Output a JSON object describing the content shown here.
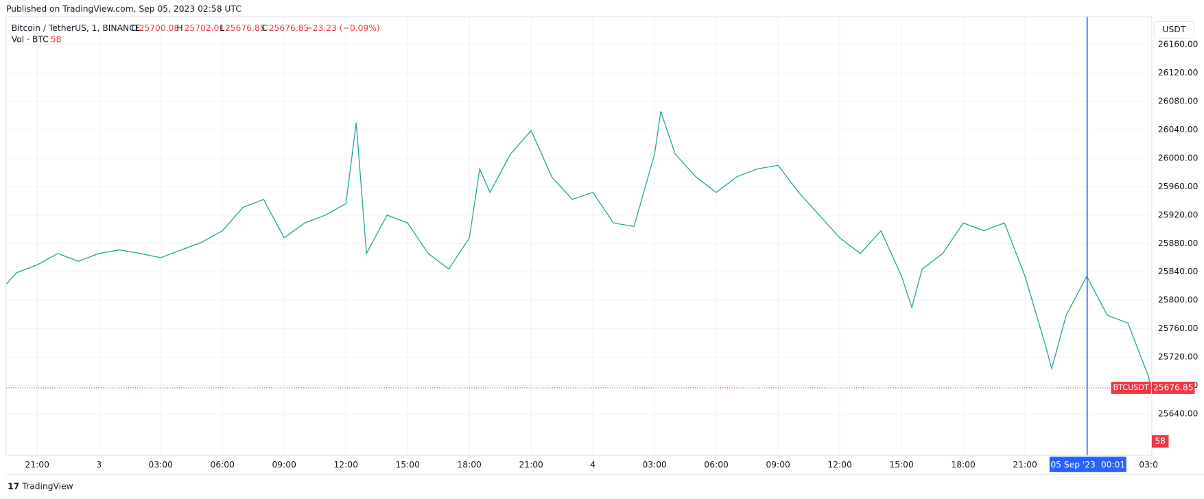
{
  "header": "Published on TradingView.com, Sep 05, 2023 02:58 UTC",
  "symbol": "Bitcoin / TetherUS, 1, BINANCE",
  "ohlc": {
    "open": 25700.08,
    "high": 25702.01,
    "low": 25676.85,
    "close": 25676.85,
    "change": "−23.23 (−0.09%)"
  },
  "volume": {
    "label": "Vol · BTC",
    "value": 58
  },
  "currency_button": "USDT",
  "footer": "TradingView",
  "chart_data": {
    "type": "line",
    "x": [
      -4.5,
      -4,
      -3,
      -2,
      -1,
      0,
      1,
      2,
      3,
      4,
      5,
      6,
      7,
      8,
      9,
      10,
      11,
      12,
      12.5,
      13,
      14,
      15,
      16,
      17,
      18,
      18.5,
      19,
      20,
      21,
      22,
      23,
      24,
      25,
      26,
      27,
      27.3,
      28,
      29,
      30,
      31,
      32,
      33,
      34,
      35,
      36,
      37,
      38,
      39,
      39.5,
      40,
      41,
      42,
      43,
      44,
      45,
      46,
      46.3,
      47,
      48,
      49,
      50,
      51,
      51.1
    ],
    "series": [
      {
        "name": "BTCUSDT",
        "color": "#26a69a",
        "values": [
          25823,
          25839,
          25850,
          25866,
          25855,
          25866,
          25871,
          25866,
          25860,
          25871,
          25882,
          25898,
          25931,
          25942,
          25888,
          25909,
          25920,
          25936,
          26050,
          25866,
          25920,
          25909,
          25866,
          25844,
          25888,
          25985,
          25952,
          26006,
          26039,
          25974,
          25942,
          25952,
          25909,
          25904,
          26006,
          26066,
          26006,
          25974,
          25952,
          25974,
          25985,
          25990,
          25952,
          25920,
          25888,
          25866,
          25898,
          25834,
          25790,
          25844,
          25866,
          25909,
          25898,
          25909,
          25834,
          25736,
          25704,
          25779,
          25834,
          25779,
          25768,
          25693,
          25676.85
        ]
      }
    ],
    "last_price": {
      "value": 25676.85,
      "label": "25676.85"
    },
    "crosshair": {
      "x": 48.02,
      "label": "05 Sep '23  00:01"
    },
    "xlim": [
      -4.51,
      51.16
    ],
    "ylim": [
      25582,
      26199
    ],
    "xticks": [
      {
        "value": -3,
        "label": "21:00"
      },
      {
        "value": 0,
        "label": "3"
      },
      {
        "value": 3,
        "label": "03:00"
      },
      {
        "value": 6,
        "label": "06:00"
      },
      {
        "value": 9,
        "label": "09:00"
      },
      {
        "value": 12,
        "label": "12:00"
      },
      {
        "value": 15,
        "label": "15:00"
      },
      {
        "value": 18,
        "label": "18:00"
      },
      {
        "value": 21,
        "label": "21:00"
      },
      {
        "value": 24,
        "label": "4"
      },
      {
        "value": 27,
        "label": "03:00"
      },
      {
        "value": 30,
        "label": "06:00"
      },
      {
        "value": 33,
        "label": "09:00"
      },
      {
        "value": 36,
        "label": "12:00"
      },
      {
        "value": 39,
        "label": "15:00"
      },
      {
        "value": 42,
        "label": "18:00"
      },
      {
        "value": 45,
        "label": "21:00"
      },
      {
        "value": 51,
        "label": "03:0"
      }
    ],
    "yticks": [
      {
        "value": 25640,
        "label": "25640.00"
      },
      {
        "value": 25680,
        "label": "25680.00"
      },
      {
        "value": 25720,
        "label": "25720.00"
      },
      {
        "value": 25760,
        "label": "25760.00"
      },
      {
        "value": 25800,
        "label": "25800.00"
      },
      {
        "value": 25840,
        "label": "25840.00"
      },
      {
        "value": 25880,
        "label": "25880.00"
      },
      {
        "value": 25920,
        "label": "25920.00"
      },
      {
        "value": 25960,
        "label": "25960.00"
      },
      {
        "value": 26000,
        "label": "26000.00"
      },
      {
        "value": 26040,
        "label": "26040.00"
      },
      {
        "value": 26080,
        "label": "26080.00"
      },
      {
        "value": 26120,
        "label": "26120.00"
      },
      {
        "value": 26160,
        "label": "26160.00"
      }
    ],
    "grid": true
  }
}
